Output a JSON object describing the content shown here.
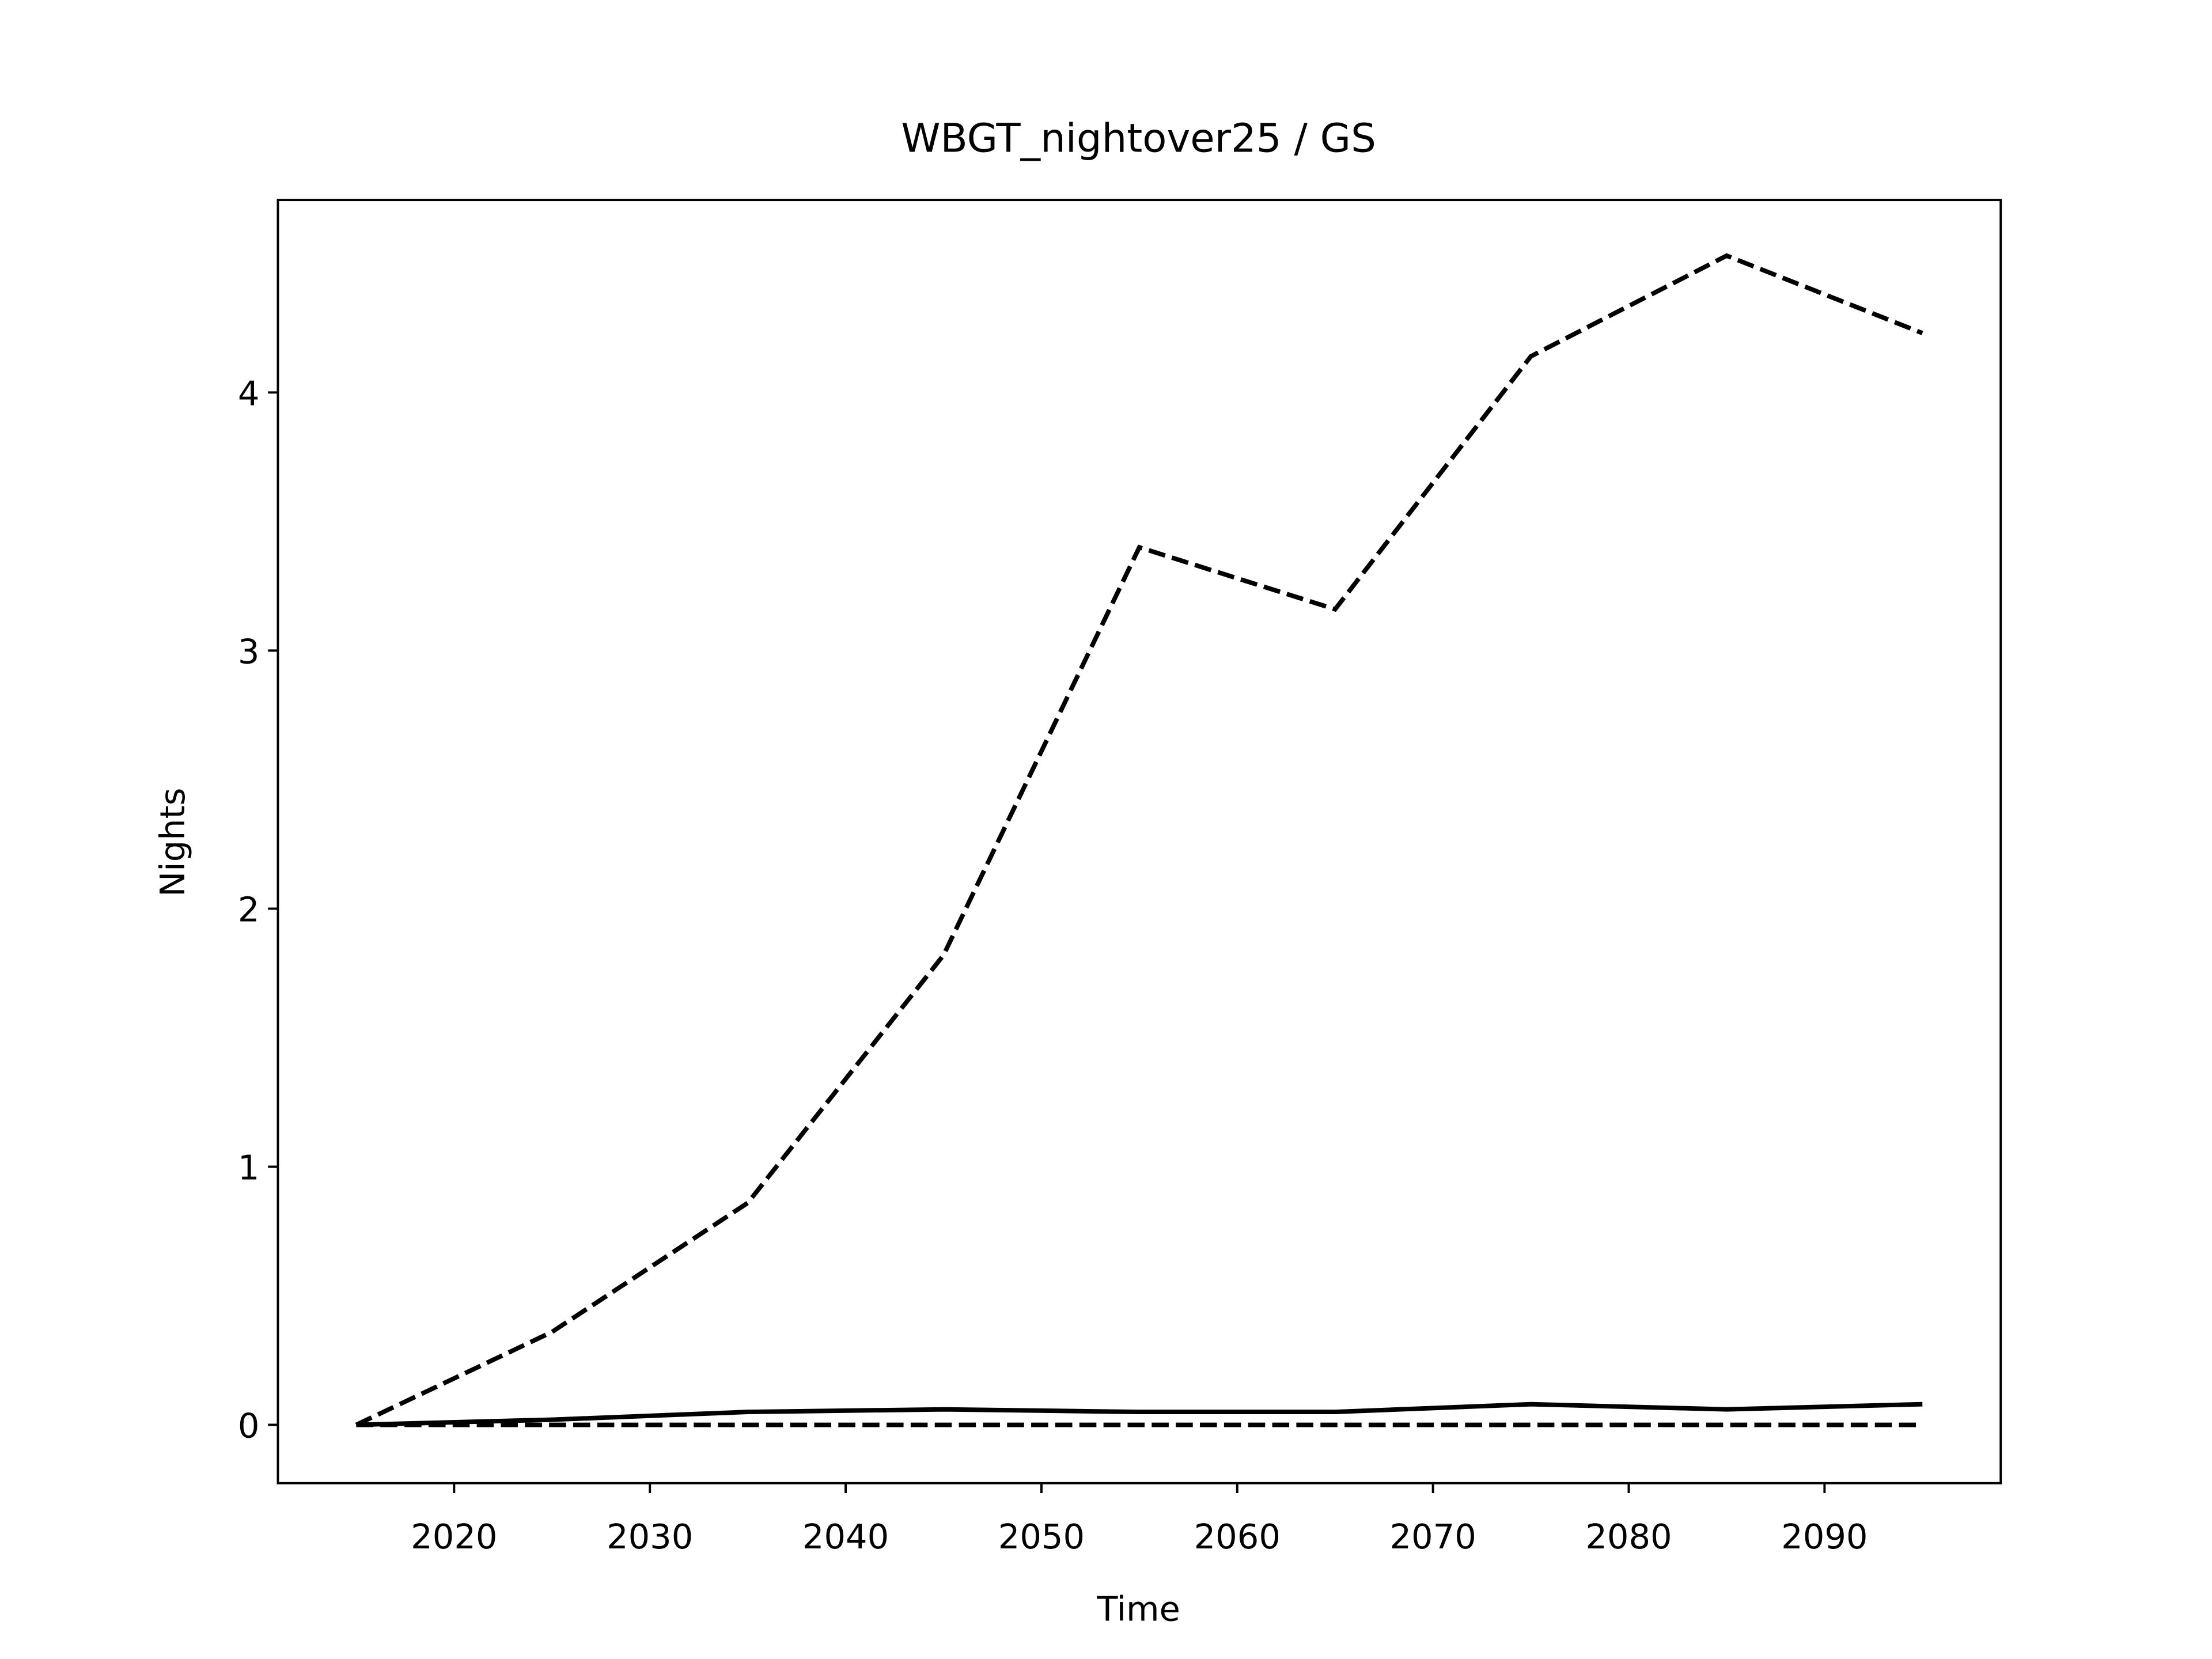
{
  "chart_data": {
    "type": "line",
    "title": "WBGT_nightover25 / GS",
    "x_label": "Time",
    "y_label": "Nights",
    "x": [
      2015,
      2025,
      2035,
      2045,
      2055,
      2065,
      2075,
      2085,
      2095
    ],
    "series": [
      {
        "color": "#000000",
        "linestyle": "dashed",
        "values": [
          0,
          0.36,
          0.86,
          1.82,
          3.4,
          3.16,
          4.14,
          4.53,
          4.23
        ]
      },
      {
        "color": "#000000",
        "linestyle": "solid",
        "values": [
          0,
          0.02,
          0.05,
          0.06,
          0.05,
          0.05,
          0.08,
          0.06,
          0.08
        ]
      },
      {
        "color": "#000000",
        "linestyle": "dashed",
        "values": [
          0,
          0,
          0,
          0,
          0,
          0,
          0,
          0,
          0
        ]
      }
    ],
    "xlim": [
      2011,
      2099
    ],
    "ylim": [
      -0.226,
      4.746
    ],
    "xticks": [
      2020,
      2030,
      2040,
      2050,
      2060,
      2070,
      2080,
      2090
    ],
    "yticks": [
      0,
      1,
      2,
      3,
      4
    ],
    "grid": false
  }
}
